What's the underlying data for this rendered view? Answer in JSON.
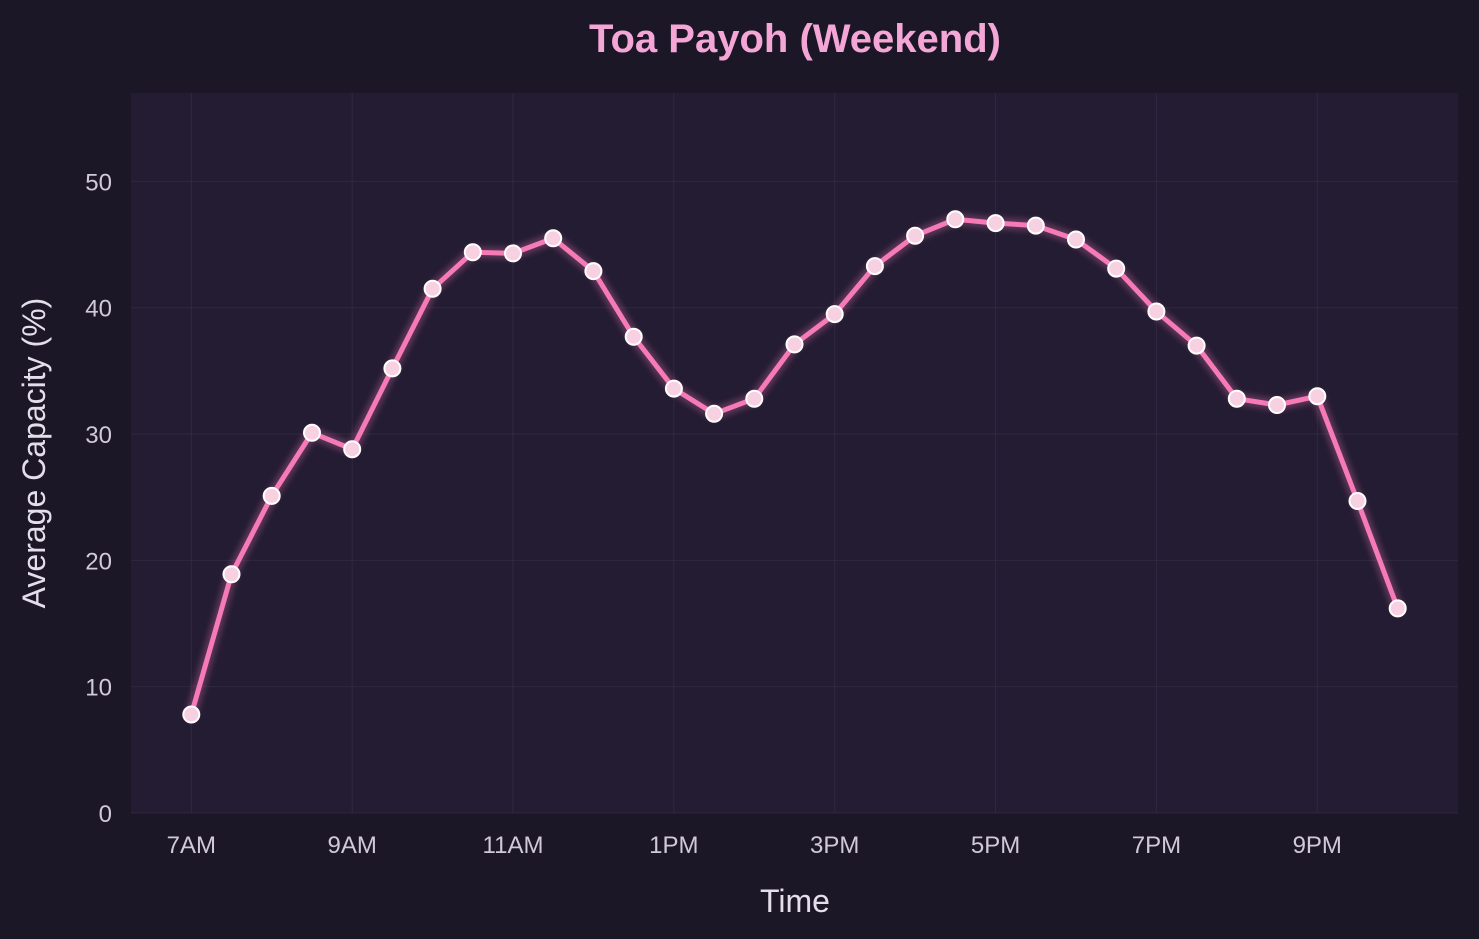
{
  "chart_data": {
    "type": "line",
    "title": "Toa Payoh (Weekend)",
    "xlabel": "Time",
    "ylabel": "Average Capacity (%)",
    "ylim": [
      0,
      57
    ],
    "xlim": [
      6.25,
      22.75
    ],
    "yticks": [
      0,
      10,
      20,
      30,
      40,
      50
    ],
    "xticks": [
      {
        "value": 7,
        "label": "7AM"
      },
      {
        "value": 9,
        "label": "9AM"
      },
      {
        "value": 11,
        "label": "11AM"
      },
      {
        "value": 13,
        "label": "1PM"
      },
      {
        "value": 15,
        "label": "3PM"
      },
      {
        "value": 17,
        "label": "5PM"
      },
      {
        "value": 19,
        "label": "7PM"
      },
      {
        "value": 21,
        "label": "9PM"
      }
    ],
    "grid": true,
    "colors": {
      "line": "#f57ab6",
      "point_fill": "#f7d0e2",
      "point_edge": "#ffffff",
      "plot_background": "#241c33",
      "figure_background": "#1c1727"
    },
    "series": [
      {
        "x": [
          7,
          7.5,
          8,
          8.5,
          9,
          9.5,
          10,
          10.5,
          11,
          11.5,
          12,
          12.5,
          13,
          13.5,
          14,
          14.5,
          15,
          15.5,
          16,
          16.5,
          17,
          17.5,
          18,
          18.5,
          19,
          19.5,
          20,
          20.5,
          21,
          21.5,
          22
        ],
        "values": [
          7.8,
          18.9,
          25.1,
          30.1,
          28.8,
          35.2,
          41.5,
          44.4,
          44.3,
          45.5,
          42.9,
          37.7,
          33.6,
          31.6,
          32.8,
          37.1,
          39.5,
          43.3,
          45.7,
          47.0,
          46.7,
          46.5,
          45.4,
          43.1,
          39.7,
          37.0,
          32.8,
          32.3,
          33.0,
          24.7,
          16.2
        ]
      }
    ]
  }
}
